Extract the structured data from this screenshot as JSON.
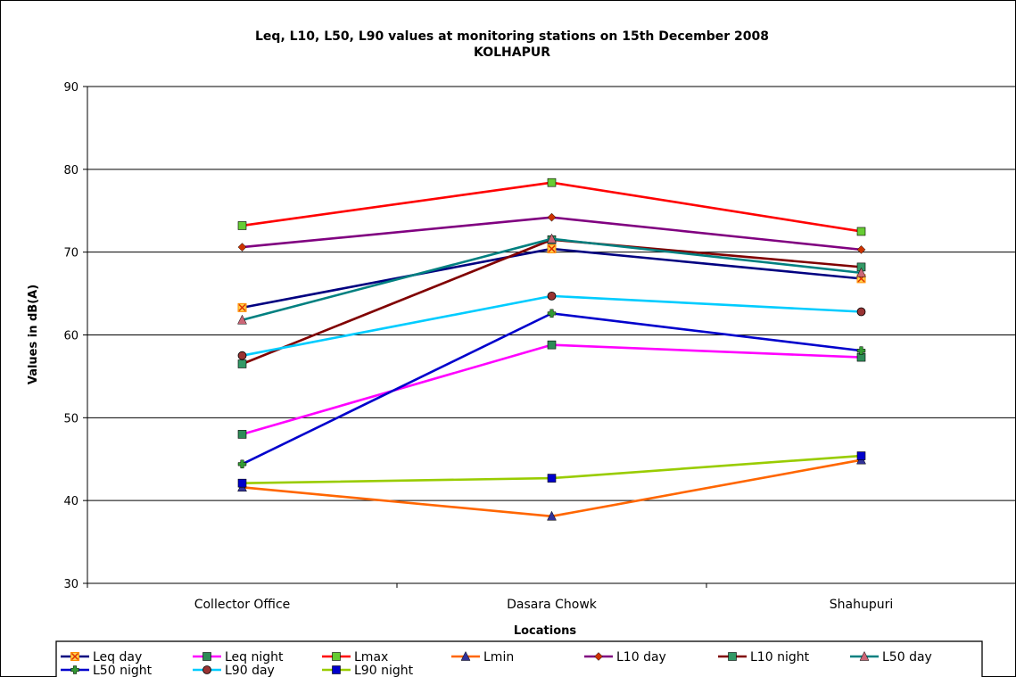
{
  "chart_data": {
    "type": "line",
    "title": "Leq, L10, L50, L90 values at monitoring stations on 15th December 2008",
    "subtitle": "KOLHAPUR",
    "xlabel": "Locations",
    "ylabel": "Values in dB(A)",
    "ylim": [
      30,
      90
    ],
    "yticks": [
      30,
      40,
      50,
      60,
      70,
      80,
      90
    ],
    "grid": true,
    "legend_position": "bottom",
    "categories": [
      "Collector Office",
      "Dasara Chowk",
      "Shahupuri"
    ],
    "series": [
      {
        "name": "Leq day",
        "values": [
          63.3,
          70.4,
          66.8
        ],
        "color": "#000080",
        "marker": "x-square",
        "marker_color": "#FF8C00"
      },
      {
        "name": "Leq night",
        "values": [
          48.0,
          58.8,
          57.3
        ],
        "color": "#FF00FF",
        "marker": "square",
        "marker_color": "#2E8B57"
      },
      {
        "name": "Lmax",
        "values": [
          73.2,
          78.4,
          72.5
        ],
        "color": "#FF0000",
        "marker": "square",
        "marker_color": "#66CC33"
      },
      {
        "name": "Lmin",
        "values": [
          41.6,
          38.1,
          44.9
        ],
        "color": "#FF6600",
        "marker": "triangle",
        "marker_color": "#333399"
      },
      {
        "name": "L10 day",
        "values": [
          70.6,
          74.2,
          70.3
        ],
        "color": "#800080",
        "marker": "diamond",
        "marker_color": "#CC3300"
      },
      {
        "name": "L10 night",
        "values": [
          56.5,
          71.5,
          68.2
        ],
        "color": "#800000",
        "marker": "square",
        "marker_color": "#339966"
      },
      {
        "name": "L50 day",
        "values": [
          61.8,
          71.6,
          67.5
        ],
        "color": "#008080",
        "marker": "triangle",
        "marker_color": "#CC6677"
      },
      {
        "name": "L50 night",
        "values": [
          44.4,
          62.6,
          58.1
        ],
        "color": "#0000CC",
        "marker": "plus",
        "marker_color": "#339933"
      },
      {
        "name": "L90 day",
        "values": [
          57.5,
          64.7,
          62.8
        ],
        "color": "#00CCFF",
        "marker": "circle",
        "marker_color": "#993333"
      },
      {
        "name": "L90 night",
        "values": [
          42.1,
          42.7,
          45.4
        ],
        "color": "#99CC00",
        "marker": "square",
        "marker_color": "#0000CC"
      }
    ]
  }
}
